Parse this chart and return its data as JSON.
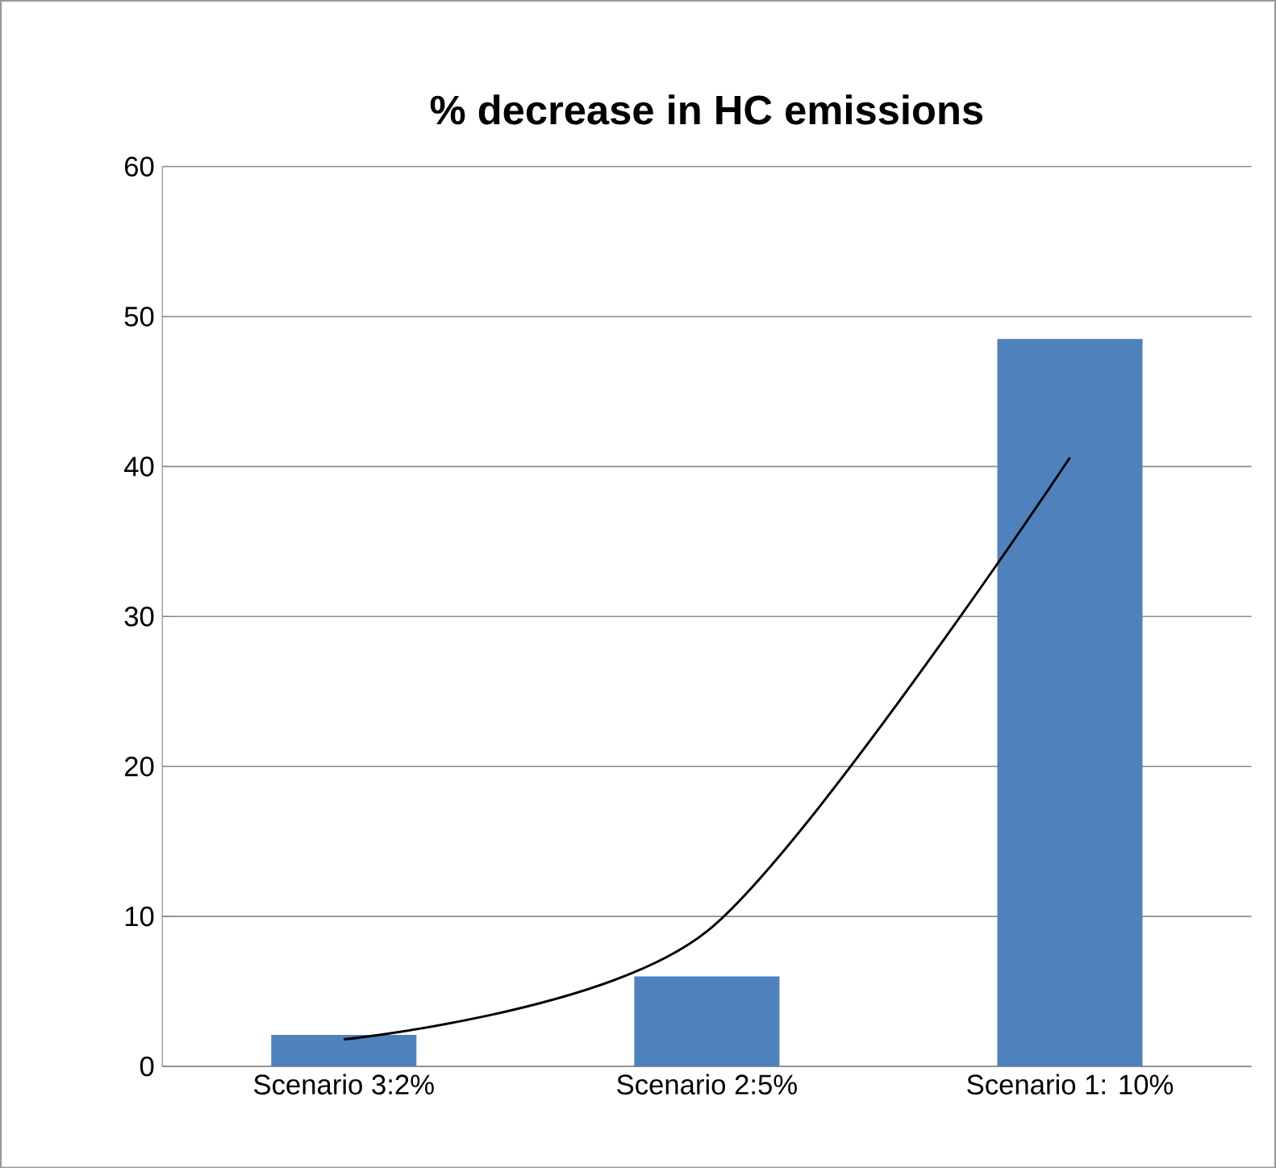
{
  "chart_data": {
    "type": "bar",
    "title": "% decrease in HC emissions",
    "categories": [
      "Scenario 3:2%",
      "Scenario 2:5%",
      "Scenario 1: 10%"
    ],
    "series": [
      {
        "color": "#4f81bd",
        "values": [
          2.1,
          6.0,
          48.5
        ]
      },
      {
        "type": "line",
        "color": "#000000",
        "marker": "none",
        "values": [
          1.8,
          9.0,
          40.6
        ]
      }
    ],
    "ylim": [
      0,
      60
    ],
    "yticks": [
      0,
      10,
      20,
      30,
      40,
      50,
      60
    ],
    "grid": "y"
  }
}
